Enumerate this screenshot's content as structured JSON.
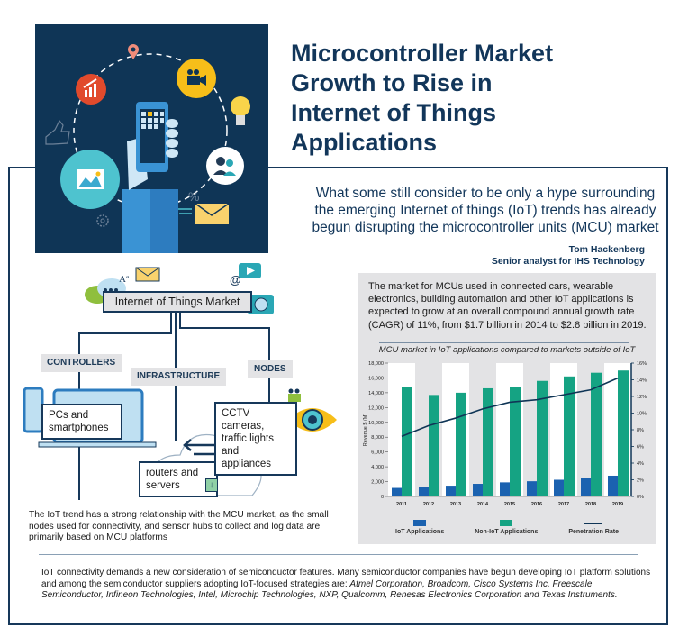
{
  "header": {
    "title_lines": [
      "Microcontroller Market",
      "Growth to Rise in",
      "Internet of Things",
      "Applications"
    ]
  },
  "quote": {
    "text": "What some still consider to be only a hype surrounding the emerging Internet of things (IoT) trends has already begun disrupting the microcontroller units (MCU) market",
    "author": "Tom Hackenberg",
    "role": "Senior analyst for IHS Technology"
  },
  "hero_icons": [
    "location-pin-icon",
    "growth-chart-icon",
    "video-camera-icon",
    "lightbulb-icon",
    "thumbs-up-icon",
    "users-icon",
    "picture-icon",
    "percent-icon",
    "gear-icon",
    "envelope-icon",
    "smartphone-in-hand-icon"
  ],
  "diagram": {
    "root": "Internet of Things Market",
    "branches": [
      {
        "label": "CONTROLLERS",
        "leaf": "PCs and smartphones"
      },
      {
        "label": "INFRASTRUCTURE",
        "leaf": "routers and servers"
      },
      {
        "label": "NODES",
        "leaf": "CCTV cameras, traffic lights and appliances"
      }
    ],
    "caption": "The IoT trend has a strong relationship with the MCU market, as the small nodes used for connectivity, and sensor hubs to collect and log data are primarily based on MCU platforms"
  },
  "panel": {
    "text": "The market for MCUs used in connected cars, wearable electronics, building automation and other IoT applications is expected to grow at an overall compound annual growth rate (CAGR) of 11%, from $1.7 billion in 2014 to $2.8 billion in 2019."
  },
  "chart_data": {
    "type": "bar",
    "title": "MCU market in IoT applications compared to markets outside of IoT",
    "xlabel": "",
    "ylabel": "Revenue $ (M)",
    "ylim": [
      0,
      18000
    ],
    "y2lim": [
      0,
      16
    ],
    "y_ticks": [
      "0",
      "2,000",
      "4,000",
      "6,000",
      "8,000",
      "10,000",
      "12,000",
      "14,000",
      "16,000",
      "18,000"
    ],
    "y2_ticks": [
      "0%",
      "2%",
      "4%",
      "6%",
      "8%",
      "10%",
      "12%",
      "14%",
      "16%"
    ],
    "categories": [
      "2011",
      "2012",
      "2013",
      "2014",
      "2015",
      "2016",
      "2017",
      "2018",
      "2019"
    ],
    "series": [
      {
        "name": "IoT Applications",
        "type": "bar",
        "color": "#1b62b0",
        "values": [
          1150,
          1300,
          1450,
          1700,
          1900,
          2050,
          2250,
          2450,
          2800
        ]
      },
      {
        "name": "Non-IoT Applications",
        "type": "bar",
        "color": "#15a383",
        "values": [
          14800,
          13700,
          14000,
          14600,
          14800,
          15600,
          16200,
          16700,
          17000
        ]
      },
      {
        "name": "Penetration Rate",
        "type": "line",
        "axis": "right",
        "color": "#0f3556",
        "values": [
          7.2,
          8.5,
          9.4,
          10.5,
          11.3,
          11.6,
          12.2,
          12.8,
          14.2
        ]
      }
    ],
    "legend_position": "bottom",
    "grid": true
  },
  "footer": {
    "text_plain": "IoT connectivity demands a new consideration of semiconductor features. Many semiconductor companies have begun developing IoT platform solutions and among the semiconductor suppliers adopting IoT-focused strategies are: ",
    "text_italic": "Atmel Corporation, Broadcom, Cisco Systems Inc, Freescale Semiconductor, Infineon Technologies, Intel, Microchip Technologies, NXP, Qualcomm, Renesas Electronics Corporation and Texas Instruments."
  }
}
